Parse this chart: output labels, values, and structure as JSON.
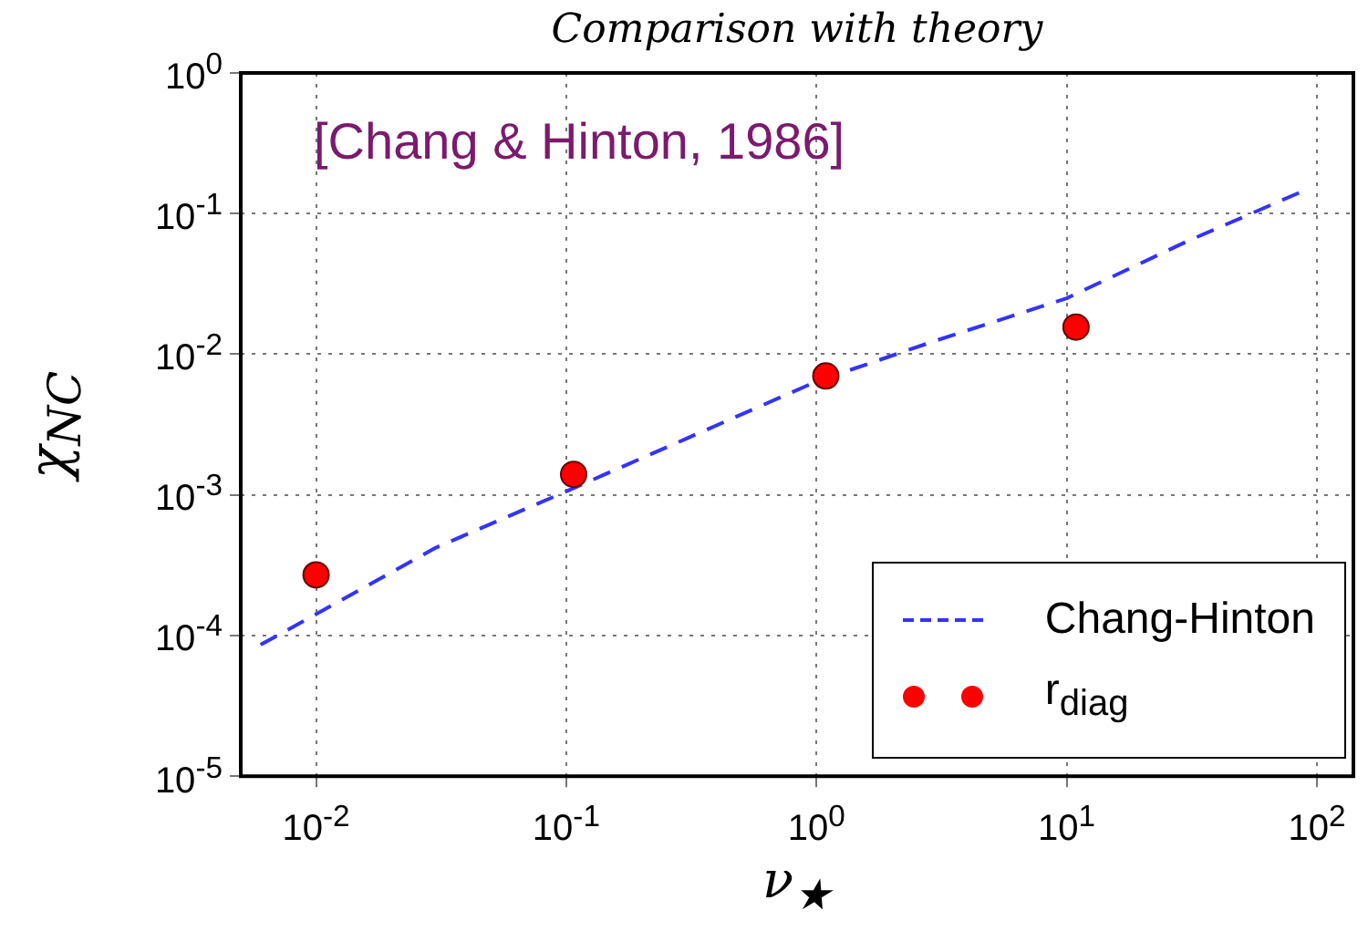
{
  "chart_data": {
    "type": "scatter",
    "title": "Comparison with theory",
    "xlabel": "ν$_{★}$",
    "ylabel": "χ$_{NC}$",
    "annotations": [
      "[Chang & Hinton, 1986]"
    ],
    "series": [
      {
        "name": "Chang-Hinton",
        "type": "line",
        "color": "#3333ff",
        "line_style": "dashed",
        "marker": "none",
        "x": [
          0.006,
          0.01,
          0.03,
          0.1,
          0.3,
          1,
          3,
          10,
          30,
          90
        ],
        "values": [
          8.6e-05,
          0.000142,
          0.00042,
          0.00106,
          0.0025,
          0.0064,
          0.0125,
          0.025,
          0.063,
          0.147
        ]
      },
      {
        "name": "r$_{diag}$",
        "type": "scatter",
        "color": "#ff0000",
        "marker": "circle",
        "x": [
          0.01,
          0.107,
          1.09,
          10.9
        ],
        "values": [
          0.00027,
          0.0014,
          0.007,
          0.0156
        ]
      }
    ],
    "xlim": [
      0.005,
      140
    ],
    "ylim": [
      1e-05,
      1
    ],
    "xticks": [
      {
        "value": 0.01,
        "label": "10$^{-2}$"
      },
      {
        "value": 0.1,
        "label": "10$^{-1}$"
      },
      {
        "value": 1,
        "label": "10$^{0}$"
      },
      {
        "value": 10,
        "label": "10$^{1}$"
      },
      {
        "value": 100,
        "label": "10$^{2}$"
      }
    ],
    "yticks": [
      {
        "value": 1e-05,
        "label": "10$^{-5}$"
      },
      {
        "value": 0.0001,
        "label": "10$^{-4}$"
      },
      {
        "value": 0.001,
        "label": "10$^{-3}$"
      },
      {
        "value": 0.01,
        "label": "10$^{-2}$"
      },
      {
        "value": 0.1,
        "label": "10$^{-1}$"
      },
      {
        "value": 1,
        "label": "10$^{0}$"
      }
    ],
    "log": "xy",
    "grid": true,
    "legend": "bottom right"
  }
}
